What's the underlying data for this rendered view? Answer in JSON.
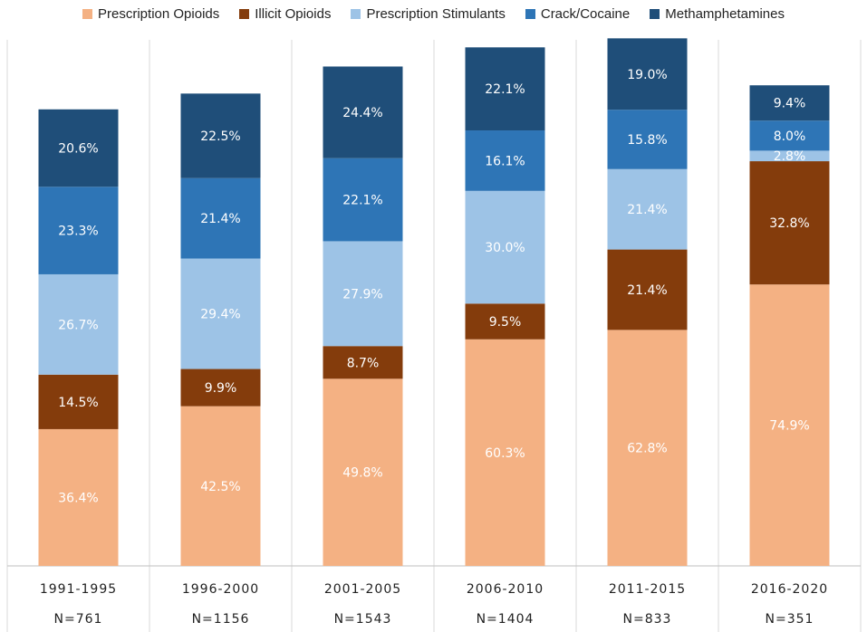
{
  "chart_data": {
    "type": "bar",
    "stacked": true,
    "title": "",
    "xlabel": "",
    "ylabel": "",
    "categories": [
      "1991-1995",
      "1996-2000",
      "2001-2005",
      "2006-2010",
      "2011-2015",
      "2016-2020"
    ],
    "sample_sizes": [
      "N=761",
      "N=1156",
      "N=1543",
      "N=1404",
      "N=833",
      "N=351"
    ],
    "series": [
      {
        "name": "Prescription Opioids",
        "color": "#f4b183",
        "values": [
          36.4,
          42.5,
          49.8,
          60.3,
          62.8,
          74.9
        ]
      },
      {
        "name": "Illicit Opioids",
        "color": "#843c0c",
        "values": [
          14.5,
          9.9,
          8.7,
          9.5,
          21.4,
          32.8
        ]
      },
      {
        "name": "Prescription Stimulants",
        "color": "#9dc3e6",
        "values": [
          26.7,
          29.4,
          27.9,
          30.0,
          21.4,
          2.8
        ]
      },
      {
        "name": "Crack/Cocaine",
        "color": "#2e75b6",
        "values": [
          23.3,
          21.4,
          22.1,
          16.1,
          15.8,
          8.0
        ]
      },
      {
        "name": "Methamphetamines",
        "color": "#1f4e79",
        "values": [
          20.6,
          22.5,
          24.4,
          22.1,
          19.0,
          9.4
        ]
      }
    ],
    "value_suffix": "%",
    "ylim": [
      0,
      140
    ],
    "legend_position": "top"
  }
}
